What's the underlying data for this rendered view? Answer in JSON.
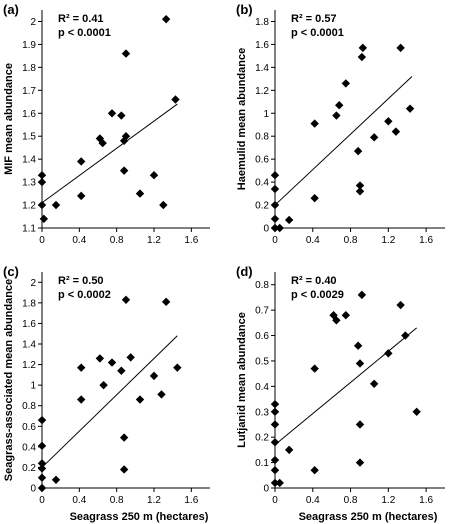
{
  "x_axis_title": "Seagrass 250 m (hectares)",
  "chart_data": [
    {
      "type": "scatter",
      "panel_label": "(a)",
      "ylabel": "MIF mean abundance",
      "stat_r2": "R² = 0.41",
      "stat_p": "p < 0.0001",
      "xlim": [
        0,
        1.8
      ],
      "ylim": [
        1.1,
        2.05
      ],
      "xticks": [
        "0",
        "0.4",
        "0.8",
        "1.2",
        "1.6"
      ],
      "xtick_values": [
        0,
        0.4,
        0.8,
        1.2,
        1.6
      ],
      "yticks": [
        "1.1",
        "1.2",
        "1.3",
        "1.4",
        "1.5",
        "1.6",
        "1.7",
        "1.8",
        "1.9",
        "2"
      ],
      "ytick_values": [
        1.1,
        1.2,
        1.3,
        1.4,
        1.5,
        1.6,
        1.7,
        1.8,
        1.9,
        2.0
      ],
      "points": [
        {
          "x": 0.0,
          "y": 1.33
        },
        {
          "x": 0.0,
          "y": 1.3
        },
        {
          "x": 0.0,
          "y": 1.2
        },
        {
          "x": 0.02,
          "y": 1.14
        },
        {
          "x": 0.15,
          "y": 1.2
        },
        {
          "x": 0.42,
          "y": 1.39
        },
        {
          "x": 0.42,
          "y": 1.24
        },
        {
          "x": 0.62,
          "y": 1.49
        },
        {
          "x": 0.65,
          "y": 1.47
        },
        {
          "x": 0.75,
          "y": 1.6
        },
        {
          "x": 0.85,
          "y": 1.59
        },
        {
          "x": 0.88,
          "y": 1.48
        },
        {
          "x": 0.88,
          "y": 1.35
        },
        {
          "x": 0.9,
          "y": 1.5
        },
        {
          "x": 0.9,
          "y": 1.86
        },
        {
          "x": 1.05,
          "y": 1.25
        },
        {
          "x": 1.2,
          "y": 1.33
        },
        {
          "x": 1.3,
          "y": 1.2
        },
        {
          "x": 1.33,
          "y": 2.01
        },
        {
          "x": 1.43,
          "y": 1.66
        }
      ],
      "trendline": {
        "x": [
          0,
          1.45
        ],
        "y": [
          1.21,
          1.64
        ]
      }
    },
    {
      "type": "scatter",
      "panel_label": "(b)",
      "ylabel": "Haemulid mean abundance",
      "stat_r2": "R² = 0.57",
      "stat_p": "p < 0.0001",
      "xlim": [
        0,
        1.8
      ],
      "ylim": [
        0,
        1.9
      ],
      "xticks": [
        "0",
        "0.4",
        "0.8",
        "1.2",
        "1.6"
      ],
      "xtick_values": [
        0,
        0.4,
        0.8,
        1.2,
        1.6
      ],
      "yticks": [
        "0",
        "0.2",
        "0.4",
        "0.6",
        "0.8",
        "1",
        "1.2",
        "1.4",
        "1.6",
        "1.8"
      ],
      "ytick_values": [
        0,
        0.2,
        0.4,
        0.6,
        0.8,
        1.0,
        1.2,
        1.4,
        1.6,
        1.8
      ],
      "points": [
        {
          "x": 0.0,
          "y": 0.46
        },
        {
          "x": 0.0,
          "y": 0.34
        },
        {
          "x": 0.0,
          "y": 0.2
        },
        {
          "x": 0.0,
          "y": 0.08
        },
        {
          "x": 0.0,
          "y": 0.0
        },
        {
          "x": 0.05,
          "y": 0.0
        },
        {
          "x": 0.15,
          "y": 0.07
        },
        {
          "x": 0.42,
          "y": 0.26
        },
        {
          "x": 0.42,
          "y": 0.91
        },
        {
          "x": 0.65,
          "y": 0.98
        },
        {
          "x": 0.68,
          "y": 1.07
        },
        {
          "x": 0.75,
          "y": 1.26
        },
        {
          "x": 0.88,
          "y": 0.67
        },
        {
          "x": 0.9,
          "y": 0.37
        },
        {
          "x": 0.9,
          "y": 0.32
        },
        {
          "x": 0.92,
          "y": 1.49
        },
        {
          "x": 0.93,
          "y": 1.57
        },
        {
          "x": 1.05,
          "y": 0.79
        },
        {
          "x": 1.2,
          "y": 0.93
        },
        {
          "x": 1.28,
          "y": 0.84
        },
        {
          "x": 1.33,
          "y": 1.57
        },
        {
          "x": 1.43,
          "y": 1.04
        }
      ],
      "trendline": {
        "x": [
          0,
          1.45
        ],
        "y": [
          0.2,
          1.32
        ]
      }
    },
    {
      "type": "scatter",
      "panel_label": "(c)",
      "ylabel": "Seagrass-associated mean abundance",
      "stat_r2": "R² = 0.50",
      "stat_p": "p < 0.0002",
      "xlim": [
        0,
        1.8
      ],
      "ylim": [
        0,
        2.1
      ],
      "xticks": [
        "0",
        "0.4",
        "0.8",
        "1.2",
        "1.6"
      ],
      "xtick_values": [
        0,
        0.4,
        0.8,
        1.2,
        1.6
      ],
      "yticks": [
        "0",
        "0.2",
        "0.4",
        "0.6",
        "0.8",
        "1",
        "1.2",
        "1.4",
        "1.6",
        "1.8",
        "2"
      ],
      "ytick_values": [
        0,
        0.2,
        0.4,
        0.6,
        0.8,
        1.0,
        1.2,
        1.4,
        1.6,
        1.8,
        2.0
      ],
      "points": [
        {
          "x": 0.0,
          "y": 0.66
        },
        {
          "x": 0.0,
          "y": 0.41
        },
        {
          "x": 0.0,
          "y": 0.24
        },
        {
          "x": 0.0,
          "y": 0.19
        },
        {
          "x": 0.0,
          "y": 0.1
        },
        {
          "x": 0.0,
          "y": 0.0
        },
        {
          "x": 0.15,
          "y": 0.08
        },
        {
          "x": 0.42,
          "y": 0.86
        },
        {
          "x": 0.42,
          "y": 1.17
        },
        {
          "x": 0.62,
          "y": 1.26
        },
        {
          "x": 0.66,
          "y": 1.0
        },
        {
          "x": 0.75,
          "y": 1.22
        },
        {
          "x": 0.85,
          "y": 1.14
        },
        {
          "x": 0.88,
          "y": 0.49
        },
        {
          "x": 0.88,
          "y": 0.18
        },
        {
          "x": 0.9,
          "y": 1.83
        },
        {
          "x": 0.95,
          "y": 1.27
        },
        {
          "x": 1.05,
          "y": 0.86
        },
        {
          "x": 1.2,
          "y": 1.09
        },
        {
          "x": 1.28,
          "y": 0.91
        },
        {
          "x": 1.33,
          "y": 1.81
        },
        {
          "x": 1.45,
          "y": 1.17
        }
      ],
      "trendline": {
        "x": [
          0,
          1.45
        ],
        "y": [
          0.2,
          1.48
        ]
      }
    },
    {
      "type": "scatter",
      "panel_label": "(d)",
      "ylabel": "Lutjanid mean abundance",
      "stat_r2": "R² = 0.40",
      "stat_p": "p < 0.0029",
      "xlim": [
        0,
        1.8
      ],
      "ylim": [
        0,
        0.85
      ],
      "xticks": [
        "0",
        "0.4",
        "0.8",
        "1.2",
        "1.6"
      ],
      "xtick_values": [
        0,
        0.4,
        0.8,
        1.2,
        1.6
      ],
      "yticks": [
        "0",
        "0.1",
        "0.2",
        "0.3",
        "0.4",
        "0.5",
        "0.6",
        "0.7",
        "0.8"
      ],
      "ytick_values": [
        0,
        0.1,
        0.2,
        0.3,
        0.4,
        0.5,
        0.6,
        0.7,
        0.8
      ],
      "points": [
        {
          "x": 0.0,
          "y": 0.33
        },
        {
          "x": 0.0,
          "y": 0.3
        },
        {
          "x": 0.0,
          "y": 0.25
        },
        {
          "x": 0.0,
          "y": 0.18
        },
        {
          "x": 0.0,
          "y": 0.11
        },
        {
          "x": 0.0,
          "y": 0.07
        },
        {
          "x": 0.0,
          "y": 0.02
        },
        {
          "x": 0.05,
          "y": 0.02
        },
        {
          "x": 0.15,
          "y": 0.15
        },
        {
          "x": 0.42,
          "y": 0.07
        },
        {
          "x": 0.42,
          "y": 0.47
        },
        {
          "x": 0.62,
          "y": 0.68
        },
        {
          "x": 0.65,
          "y": 0.66
        },
        {
          "x": 0.75,
          "y": 0.68
        },
        {
          "x": 0.88,
          "y": 0.56
        },
        {
          "x": 0.9,
          "y": 0.49
        },
        {
          "x": 0.9,
          "y": 0.25
        },
        {
          "x": 0.9,
          "y": 0.1
        },
        {
          "x": 0.92,
          "y": 0.76
        },
        {
          "x": 1.05,
          "y": 0.41
        },
        {
          "x": 1.2,
          "y": 0.53
        },
        {
          "x": 1.33,
          "y": 0.72
        },
        {
          "x": 1.38,
          "y": 0.6
        },
        {
          "x": 1.5,
          "y": 0.3
        }
      ],
      "trendline": {
        "x": [
          0,
          1.5
        ],
        "y": [
          0.17,
          0.63
        ]
      }
    }
  ]
}
